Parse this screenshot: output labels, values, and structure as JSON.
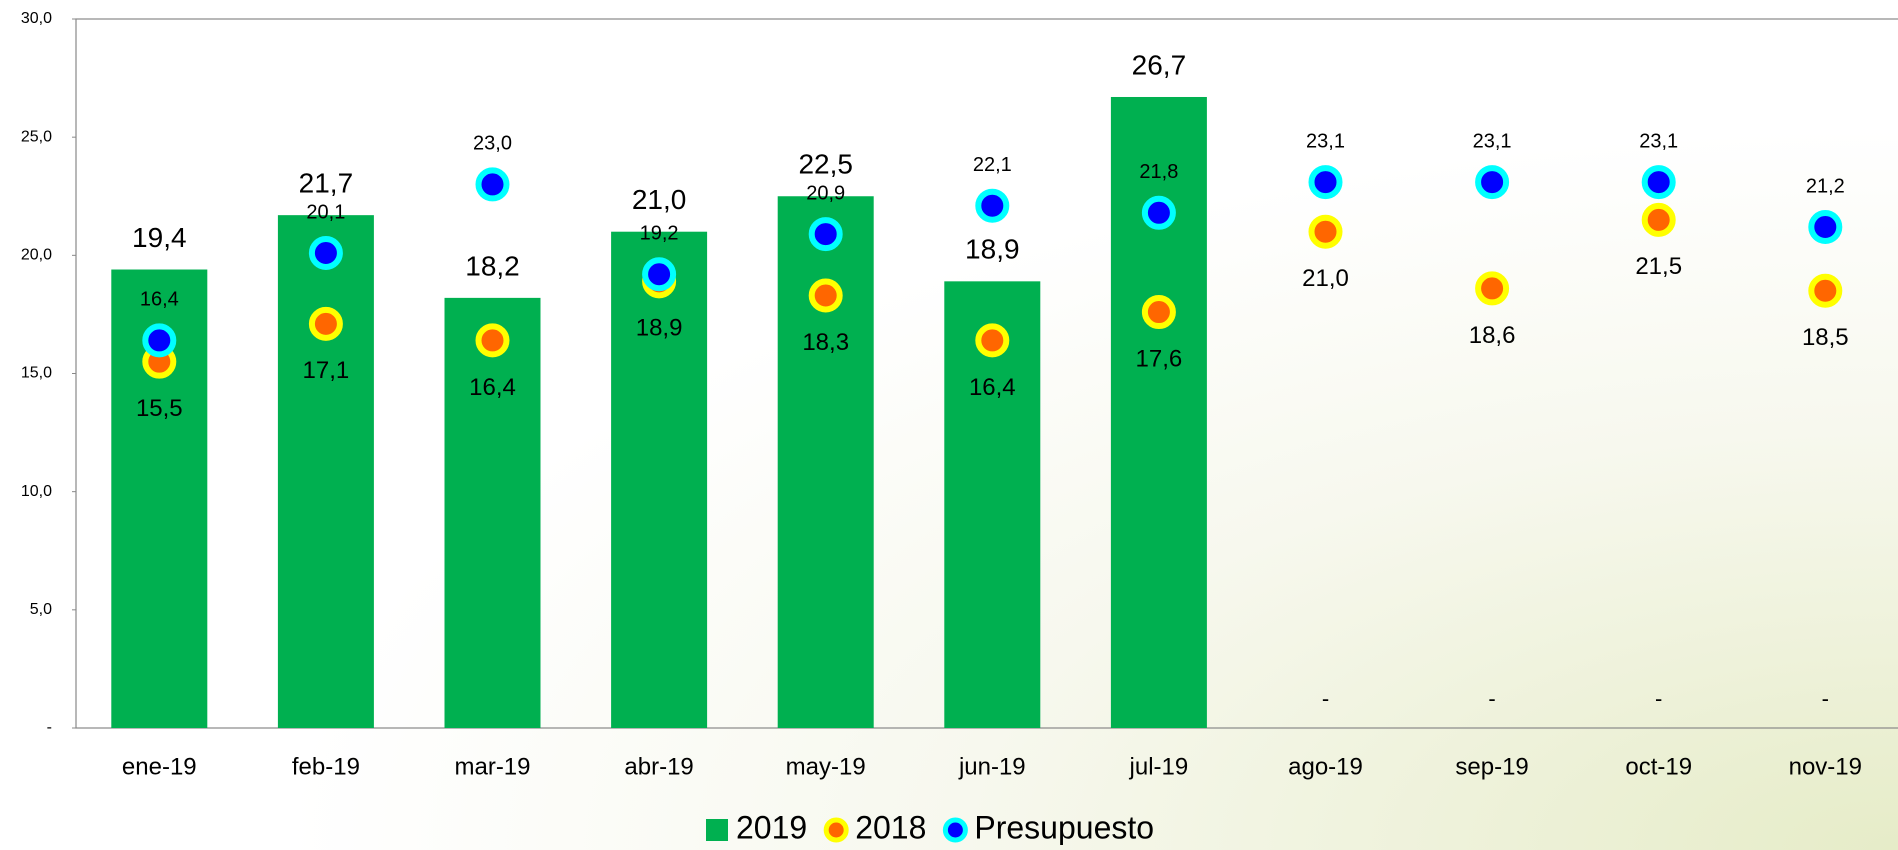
{
  "chart_data": {
    "type": "bar-dot",
    "categories": [
      "ene-19",
      "feb-19",
      "mar-19",
      "abr-19",
      "may-19",
      "jun-19",
      "jul-19",
      "ago-19",
      "sep-19",
      "oct-19",
      "nov-19"
    ],
    "series": [
      {
        "name": "2019",
        "color": "#00b050",
        "values": [
          19.4,
          21.7,
          18.2,
          21.0,
          22.5,
          18.9,
          26.7,
          0,
          0,
          0,
          0
        ],
        "value_labels": [
          "19,4",
          "21,7",
          "18,2",
          "21,0",
          "22,5",
          "18,9",
          "26,7",
          "-",
          "-",
          "-",
          "-"
        ]
      },
      {
        "name": "2018",
        "color": "#ff6600",
        "edge_color": "#ffff00",
        "values": [
          15.5,
          17.1,
          16.4,
          18.9,
          18.3,
          16.4,
          17.6,
          21.0,
          18.6,
          21.5,
          18.5
        ],
        "value_labels": [
          "15,5",
          "17,1",
          "16,4",
          "18,9",
          "18,3",
          "16,4",
          "17,6",
          "21,0",
          "18,6",
          "21,5",
          "18,5"
        ]
      },
      {
        "name": "Presupuesto",
        "color": "#0000ff",
        "edge_color": "#00ffff",
        "values": [
          16.4,
          20.1,
          23.0,
          19.2,
          20.9,
          22.1,
          21.8,
          23.1,
          23.1,
          23.1,
          21.2
        ],
        "value_labels": [
          "16,4",
          "20,1",
          "23,0",
          "19,2",
          "20,9",
          "22,1",
          "21,8",
          "23,1",
          "23,1",
          "23,1",
          "21,2"
        ]
      }
    ],
    "ylim": [
      0,
      30
    ],
    "yticks": [
      {
        "value": 0,
        "label": "-"
      },
      {
        "value": 5,
        "label": "5,0"
      },
      {
        "value": 10,
        "label": "10,0"
      },
      {
        "value": 15,
        "label": "15,0"
      },
      {
        "value": 20,
        "label": "20,0"
      },
      {
        "value": 25,
        "label": "25,0"
      },
      {
        "value": 30,
        "label": "30,0"
      }
    ]
  }
}
